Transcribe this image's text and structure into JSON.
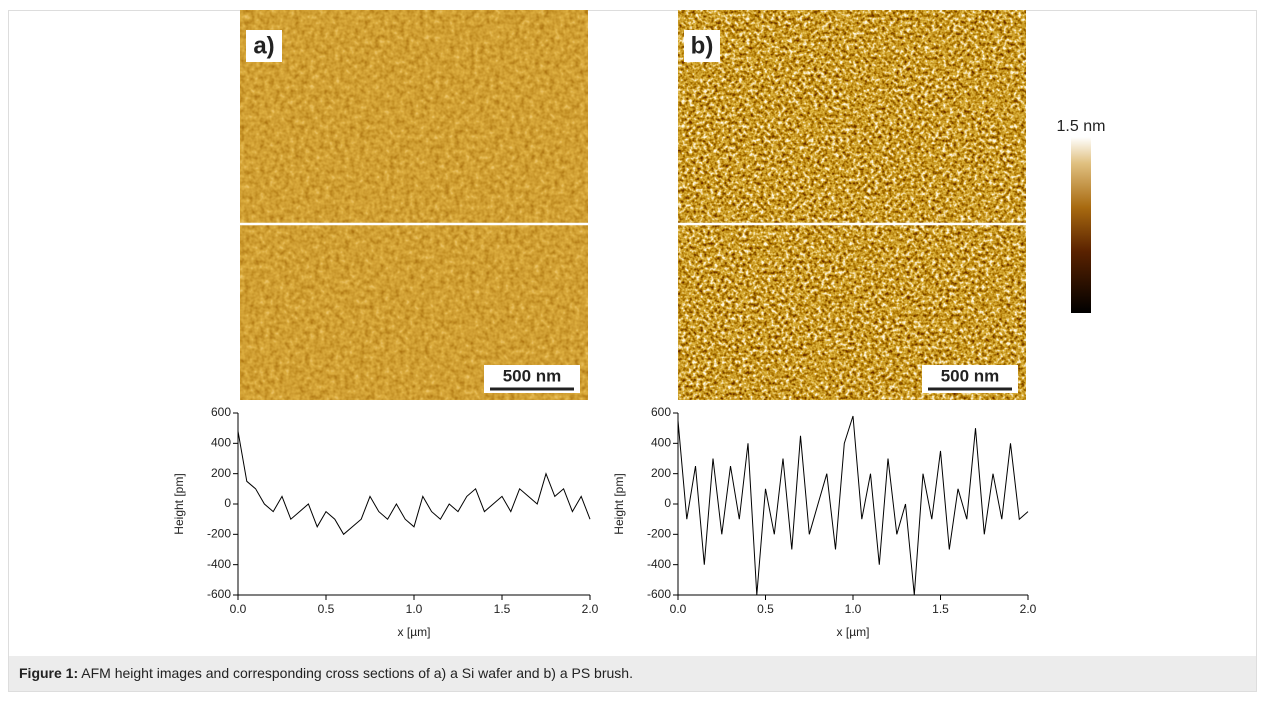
{
  "images": [
    {
      "label": "a)",
      "scale_bar": "500 nm"
    },
    {
      "label": "b)",
      "scale_bar": "500 nm"
    }
  ],
  "colorbar": {
    "label": "1.5 nm"
  },
  "chart_data": [
    {
      "type": "line",
      "ylabel": "Height [pm]",
      "xlabel": "x [µm]",
      "color": "#000000",
      "x": [
        0,
        0.05,
        0.1,
        0.15,
        0.2,
        0.25,
        0.3,
        0.35,
        0.4,
        0.45,
        0.5,
        0.55,
        0.6,
        0.65,
        0.7,
        0.75,
        0.8,
        0.85,
        0.9,
        0.95,
        1.0,
        1.05,
        1.1,
        1.15,
        1.2,
        1.25,
        1.3,
        1.35,
        1.4,
        1.45,
        1.5,
        1.55,
        1.6,
        1.65,
        1.7,
        1.75,
        1.8,
        1.85,
        1.9,
        1.95,
        2.0
      ],
      "values": [
        480,
        150,
        100,
        0,
        -50,
        50,
        -100,
        -50,
        0,
        -150,
        -50,
        -100,
        -200,
        -150,
        -100,
        50,
        -50,
        -100,
        0,
        -100,
        -150,
        50,
        -50,
        -100,
        0,
        -50,
        50,
        100,
        -50,
        0,
        50,
        -50,
        100,
        50,
        0,
        200,
        50,
        100,
        -50,
        50,
        -100
      ],
      "xlim": [
        0,
        2
      ],
      "ylim": [
        -600,
        600
      ],
      "xticks": [
        {
          "value": 0,
          "label": "0.0"
        },
        0.5,
        {
          "value": 1,
          "label": "1.0"
        },
        1.5,
        {
          "value": 2,
          "label": "2.0"
        }
      ],
      "yticks": [
        -600,
        -400,
        -200,
        0,
        200,
        400,
        600
      ]
    },
    {
      "type": "line",
      "ylabel": "Height [pm]",
      "xlabel": "x [µm]",
      "color": "#000000",
      "x": [
        0,
        0.05,
        0.1,
        0.15,
        0.2,
        0.25,
        0.3,
        0.35,
        0.4,
        0.45,
        0.5,
        0.55,
        0.6,
        0.65,
        0.7,
        0.75,
        0.8,
        0.85,
        0.9,
        0.95,
        1.0,
        1.05,
        1.1,
        1.15,
        1.2,
        1.25,
        1.3,
        1.35,
        1.4,
        1.45,
        1.5,
        1.55,
        1.6,
        1.65,
        1.7,
        1.75,
        1.8,
        1.85,
        1.9,
        1.95,
        2.0
      ],
      "values": [
        550,
        -100,
        250,
        -400,
        300,
        -200,
        250,
        -100,
        400,
        -600,
        100,
        -200,
        300,
        -300,
        450,
        -200,
        0,
        200,
        -300,
        400,
        580,
        -100,
        200,
        -400,
        300,
        -200,
        0,
        -600,
        200,
        -100,
        350,
        -300,
        100,
        -100,
        500,
        -200,
        200,
        -100,
        400,
        -100,
        -50
      ],
      "xlim": [
        0,
        2
      ],
      "ylim": [
        -600,
        600
      ],
      "xticks": [
        {
          "value": 0,
          "label": "0.0"
        },
        0.5,
        {
          "value": 1,
          "label": "1.0"
        },
        1.5,
        {
          "value": 2,
          "label": "2.0"
        }
      ],
      "yticks": [
        -600,
        -400,
        -200,
        0,
        200,
        400,
        600
      ]
    }
  ],
  "caption": {
    "label": "Figure 1:",
    "text": "AFM height images and corresponding cross sections of a) a Si wafer and b) a PS brush."
  }
}
